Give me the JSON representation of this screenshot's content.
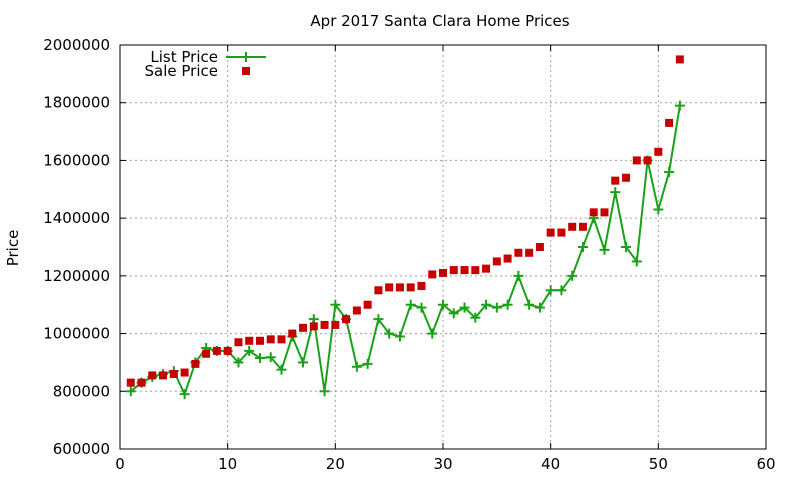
{
  "chart_data": {
    "type": "scatter",
    "title": "Apr 2017 Santa Clara Home Prices",
    "xlabel": "",
    "ylabel": "Price",
    "xlim": [
      0,
      60
    ],
    "ylim": [
      600000,
      2000000
    ],
    "xticks": [
      0,
      10,
      20,
      30,
      40,
      50,
      60
    ],
    "yticks": [
      600000,
      800000,
      1000000,
      1200000,
      1400000,
      1600000,
      1800000,
      2000000
    ],
    "grid": true,
    "legend_position": "top-left",
    "series": [
      {
        "name": "List Price",
        "style": "line-with-plus-markers",
        "color": "#1aa11a",
        "x": [
          1,
          2,
          3,
          4,
          5,
          6,
          7,
          8,
          9,
          10,
          11,
          12,
          13,
          14,
          15,
          16,
          17,
          18,
          19,
          20,
          21,
          22,
          23,
          24,
          25,
          26,
          27,
          28,
          29,
          30,
          31,
          32,
          33,
          34,
          35,
          36,
          37,
          38,
          39,
          40,
          41,
          42,
          43,
          44,
          45,
          46,
          47,
          48,
          49,
          50,
          51,
          52
        ],
        "y": [
          800000,
          830000,
          850000,
          860000,
          870000,
          790000,
          900000,
          950000,
          940000,
          940000,
          900000,
          940000,
          915000,
          918000,
          875000,
          990000,
          900000,
          1050000,
          800000,
          1100000,
          1050000,
          885000,
          895000,
          1050000,
          1000000,
          990000,
          1100000,
          1090000,
          1000000,
          1100000,
          1070000,
          1090000,
          1055000,
          1100000,
          1090000,
          1100000,
          1200000,
          1100000,
          1090000,
          1150000,
          1150000,
          1200000,
          1300000,
          1400000,
          1290000,
          1490000,
          1300000,
          1250000,
          1600000,
          1430000,
          1560000,
          1790000
        ]
      },
      {
        "name": "Sale Price",
        "style": "square-markers",
        "color": "#c40000",
        "x": [
          1,
          2,
          3,
          4,
          5,
          6,
          7,
          8,
          9,
          10,
          11,
          12,
          13,
          14,
          15,
          16,
          17,
          18,
          19,
          20,
          21,
          22,
          23,
          24,
          25,
          26,
          27,
          28,
          29,
          30,
          31,
          32,
          33,
          34,
          35,
          36,
          37,
          38,
          39,
          40,
          41,
          42,
          43,
          44,
          45,
          46,
          47,
          48,
          49,
          50,
          51,
          52
        ],
        "y": [
          830000,
          830000,
          855000,
          855000,
          860000,
          865000,
          895000,
          930000,
          940000,
          940000,
          970000,
          975000,
          975000,
          980000,
          980000,
          1000000,
          1020000,
          1025000,
          1030000,
          1030000,
          1050000,
          1080000,
          1100000,
          1150000,
          1160000,
          1160000,
          1160000,
          1165000,
          1205000,
          1210000,
          1220000,
          1220000,
          1220000,
          1225000,
          1250000,
          1260000,
          1280000,
          1280000,
          1300000,
          1350000,
          1350000,
          1370000,
          1370000,
          1420000,
          1420000,
          1530000,
          1540000,
          1600000,
          1600000,
          1630000,
          1730000,
          1950000
        ]
      }
    ]
  }
}
